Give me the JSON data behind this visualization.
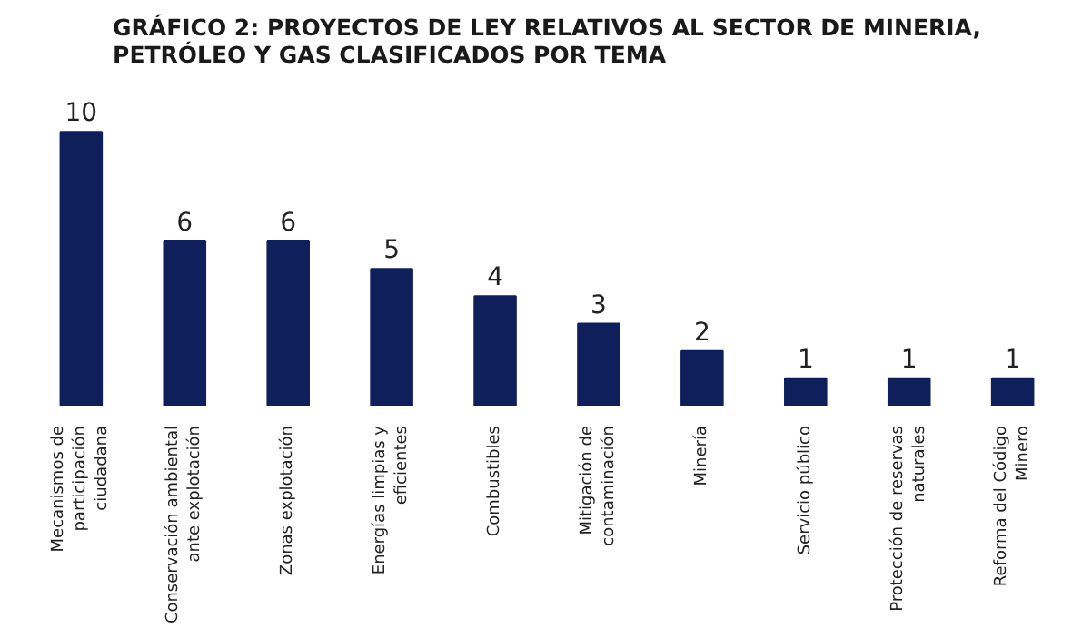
{
  "chart_data": {
    "type": "bar",
    "title": "GRÁFICO 2: PROYECTOS DE LEY RELATIVOS AL SECTOR DE MINERIA, PETRÓLEO Y GAS CLASIFICADOS POR TEMA",
    "categories": [
      "Mecanismos de participación ciudadana",
      "Conservación ambiental ante explotación",
      "Zonas explotación",
      "Energías limpias y eficientes",
      "Combustibles",
      "Mitigación de contaminación",
      "Minería",
      "Servicio público",
      "Protección de reservas naturales",
      "Reforma del Código Minero"
    ],
    "values": [
      10,
      6,
      6,
      5,
      4,
      3,
      2,
      1,
      1,
      1
    ],
    "color": "#0f1f5c",
    "data_labels": true,
    "grid": false
  }
}
